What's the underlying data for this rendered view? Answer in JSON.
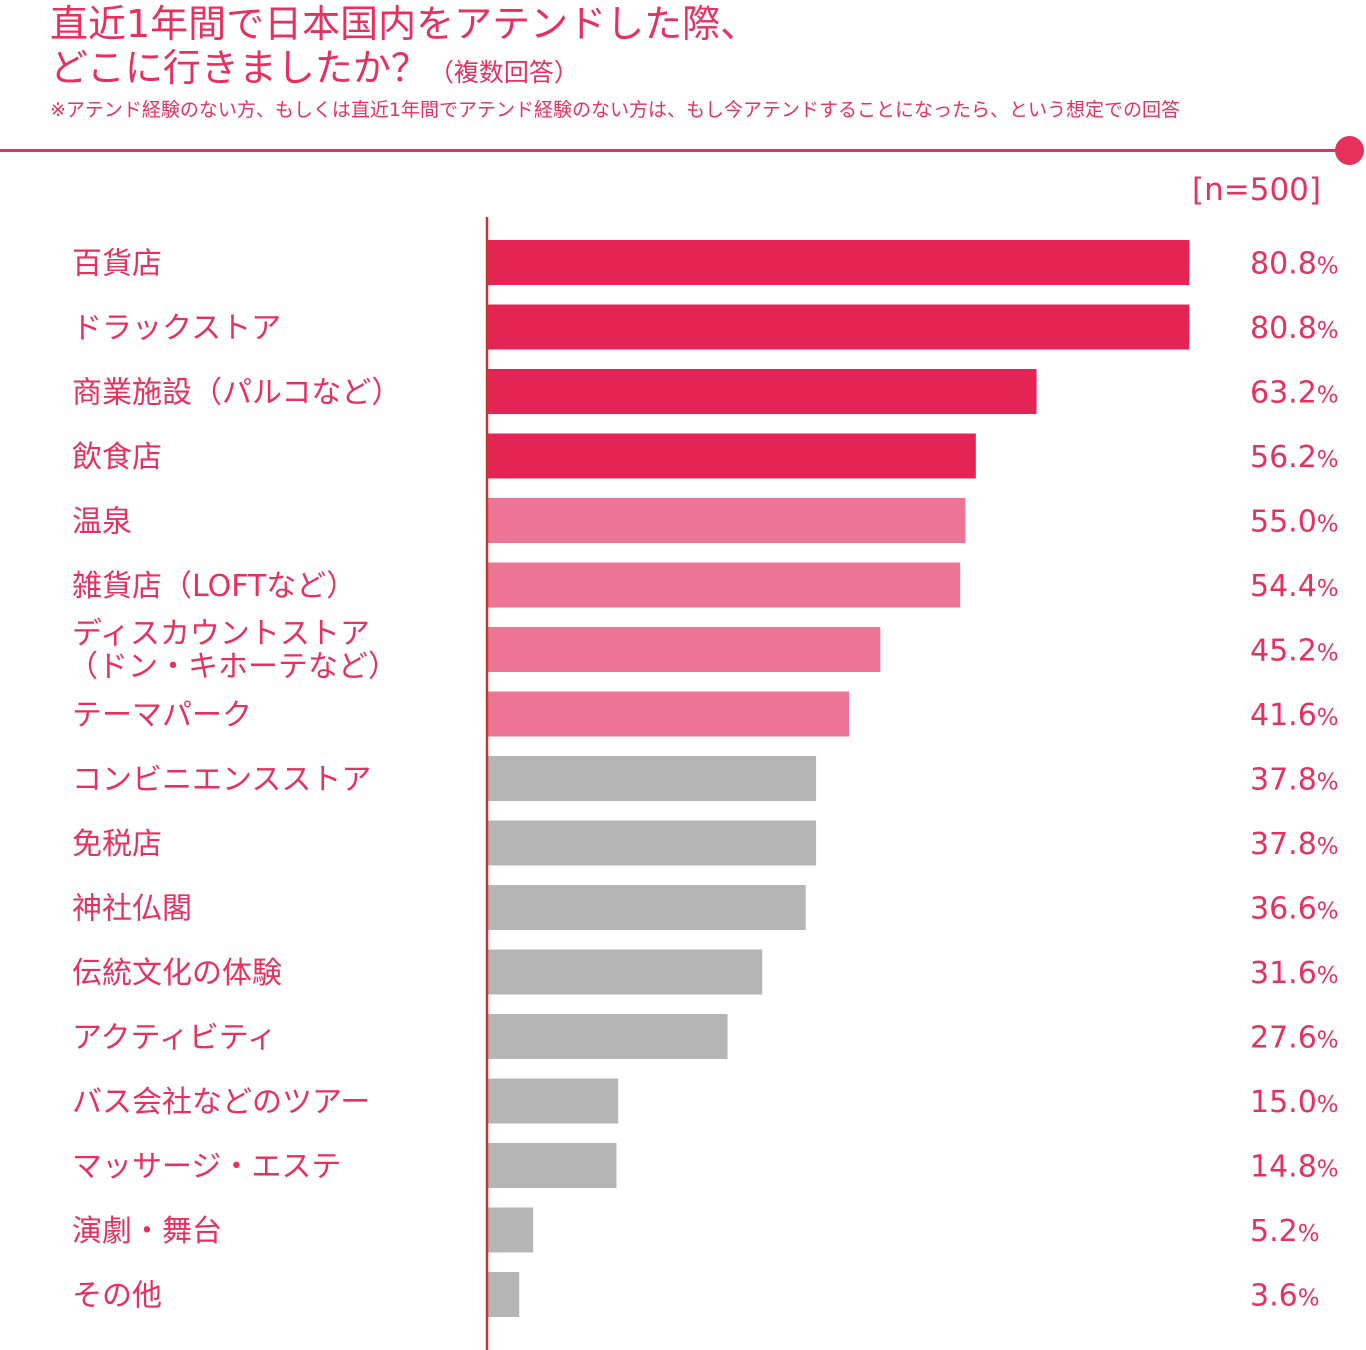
{
  "title": {
    "line1": "直近1年間で日本国内をアテンドした際、",
    "line2": "どこに行きましたか？",
    "line2_sub": "（複数回答）"
  },
  "note": "※アテンド経験のない方、もしくは直近1年間でアテンド経験のない方は、もし今アテンドすることになったら、という想定での回答",
  "sample_size": "[n=500]",
  "colors": {
    "accent": "#e8305f",
    "tier1": "#e52456",
    "tier2": "#ec7596",
    "tier3": "#b5b5b5",
    "axis": "#c0392b"
  },
  "chart_data": {
    "type": "bar",
    "orientation": "horizontal",
    "unit": "%",
    "xlim": [
      0,
      100
    ],
    "categories": [
      [
        "百貨店"
      ],
      [
        "ドラックストア"
      ],
      [
        "商業施設（パルコなど）"
      ],
      [
        "飲食店"
      ],
      [
        "温泉"
      ],
      [
        "雑貨店（LOFTなど）"
      ],
      [
        "ディスカウントストア",
        "（ドン・キホーテなど）"
      ],
      [
        "テーマパーク"
      ],
      [
        "コンビニエンスストア"
      ],
      [
        "免税店"
      ],
      [
        "神社仏閣"
      ],
      [
        "伝統文化の体験"
      ],
      [
        "アクティビティ"
      ],
      [
        "バス会社などのツアー"
      ],
      [
        "マッサージ・エステ"
      ],
      [
        "演劇・舞台"
      ],
      [
        "その他"
      ]
    ],
    "values": [
      80.8,
      80.8,
      63.2,
      56.2,
      55.0,
      54.4,
      45.2,
      41.6,
      37.8,
      37.8,
      36.6,
      31.6,
      27.6,
      15.0,
      14.8,
      5.2,
      3.6
    ],
    "value_labels": [
      "80.8",
      "80.8",
      "63.2",
      "56.2",
      "55.0",
      "54.4",
      "45.2",
      "41.6",
      "37.8",
      "37.8",
      "36.6",
      "31.6",
      "27.6",
      "15.0",
      "14.8",
      "5.2",
      "3.6"
    ],
    "percent_sign": "%",
    "color_tiers": [
      1,
      1,
      1,
      1,
      2,
      2,
      2,
      2,
      3,
      3,
      3,
      3,
      3,
      3,
      3,
      3,
      3
    ]
  }
}
